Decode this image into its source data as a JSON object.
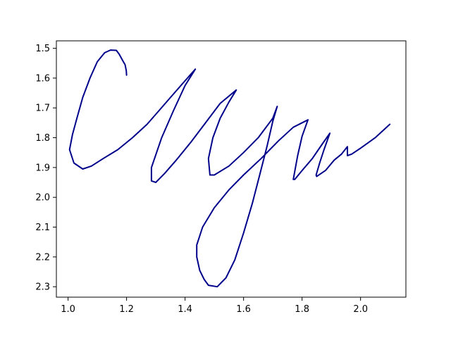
{
  "chart_data": {
    "type": "line",
    "title": "",
    "xlabel": "",
    "ylabel": "",
    "xlim": [
      0.96,
      2.155
    ],
    "ylim": [
      2.335,
      1.475
    ],
    "y_inverted": true,
    "grid": false,
    "x_ticks": [
      1.0,
      1.2,
      1.4,
      1.6,
      1.8,
      2.0
    ],
    "x_tick_labels": [
      "1.0",
      "1.2",
      "1.4",
      "1.6",
      "1.8",
      "2.0"
    ],
    "y_ticks": [
      1.5,
      1.6,
      1.7,
      1.8,
      1.9,
      2.0,
      2.1,
      2.2,
      2.3
    ],
    "y_tick_labels": [
      "1.5",
      "1.6",
      "1.7",
      "1.8",
      "1.9",
      "2.0",
      "2.1",
      "2.2",
      "2.3"
    ],
    "series": [
      {
        "color": "#00008b",
        "x": [
          1.2,
          1.199,
          1.195,
          1.186,
          1.175,
          1.165,
          1.145,
          1.125,
          1.1,
          1.075,
          1.05,
          1.03,
          1.015,
          1.005,
          1.02,
          1.05,
          1.08,
          1.12,
          1.17,
          1.22,
          1.27,
          1.31,
          1.35,
          1.39,
          1.435,
          1.4,
          1.36,
          1.32,
          1.285,
          1.285,
          1.3,
          1.33,
          1.37,
          1.42,
          1.47,
          1.52,
          1.575,
          1.55,
          1.52,
          1.495,
          1.48,
          1.485,
          1.5,
          1.55,
          1.6,
          1.65,
          1.7,
          1.715,
          1.7,
          1.68,
          1.655,
          1.63,
          1.6,
          1.57,
          1.54,
          1.51,
          1.48,
          1.465,
          1.45,
          1.44,
          1.44,
          1.46,
          1.5,
          1.55,
          1.6,
          1.66,
          1.72,
          1.77,
          1.82,
          1.8,
          1.785,
          1.77,
          1.775,
          1.8,
          1.835,
          1.87,
          1.895,
          1.875,
          1.86,
          1.848,
          1.85,
          1.88,
          1.91,
          1.935,
          1.955,
          1.955,
          1.97,
          2.0,
          2.05,
          2.1
        ],
        "y": [
          1.59,
          1.575,
          1.555,
          1.54,
          1.52,
          1.507,
          1.506,
          1.515,
          1.545,
          1.6,
          1.665,
          1.735,
          1.79,
          1.84,
          1.885,
          1.905,
          1.895,
          1.87,
          1.84,
          1.8,
          1.755,
          1.71,
          1.665,
          1.62,
          1.57,
          1.625,
          1.71,
          1.8,
          1.9,
          1.945,
          1.95,
          1.92,
          1.875,
          1.815,
          1.75,
          1.685,
          1.64,
          1.68,
          1.735,
          1.8,
          1.87,
          1.925,
          1.925,
          1.895,
          1.85,
          1.8,
          1.735,
          1.695,
          1.745,
          1.83,
          1.925,
          2.02,
          2.12,
          2.21,
          2.27,
          2.3,
          2.295,
          2.275,
          2.245,
          2.2,
          2.16,
          2.1,
          2.035,
          1.975,
          1.925,
          1.87,
          1.81,
          1.765,
          1.74,
          1.795,
          1.86,
          1.94,
          1.94,
          1.91,
          1.87,
          1.82,
          1.785,
          1.84,
          1.885,
          1.925,
          1.93,
          1.91,
          1.875,
          1.855,
          1.83,
          1.86,
          1.855,
          1.835,
          1.8,
          1.755
        ]
      }
    ]
  }
}
